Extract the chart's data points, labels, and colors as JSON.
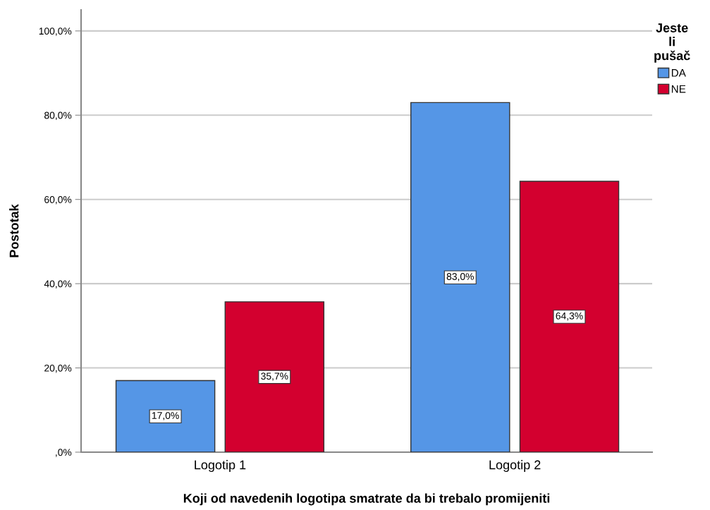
{
  "chart_data": {
    "type": "bar",
    "xlabel": "Koji od navedenih logotipa smatrate da bi trebalo promijeniti",
    "ylabel": "Postotak",
    "legend_title": "Jeste li pušač",
    "categories": [
      "Logotip 1",
      "Logotip 2"
    ],
    "series": [
      {
        "name": "DA",
        "color": "#5596e6",
        "values": [
          17.0,
          83.0
        ],
        "value_labels": [
          "17,0%",
          "83,0%"
        ]
      },
      {
        "name": "NE",
        "color": "#d3002f",
        "values": [
          35.7,
          64.3
        ],
        "value_labels": [
          "35,7%",
          "64,3%"
        ]
      }
    ],
    "ylim": [
      0,
      105
    ],
    "yticks": [
      {
        "value": 0,
        "label": ",0%"
      },
      {
        "value": 20,
        "label": "20,0%"
      },
      {
        "value": 40,
        "label": "40,0%"
      },
      {
        "value": 60,
        "label": "60,0%"
      },
      {
        "value": 80,
        "label": "80,0%"
      },
      {
        "value": 100,
        "label": "100,0%"
      }
    ],
    "grid": "y",
    "legend": "top right"
  }
}
